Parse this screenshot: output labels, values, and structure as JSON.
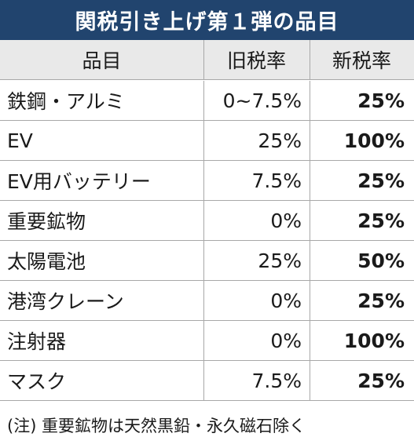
{
  "title": "関税引き上げ第１弾の品目",
  "columns": {
    "item": "品目",
    "old_rate": "旧税率",
    "new_rate": "新税率"
  },
  "rows": [
    {
      "item": "鉄鋼・アルミ",
      "old_rate": "0~7.5%",
      "new_rate": "25%"
    },
    {
      "item": "EV",
      "old_rate": "25%",
      "new_rate": "100%"
    },
    {
      "item": "EV用バッテリー",
      "old_rate": "7.5%",
      "new_rate": "25%"
    },
    {
      "item": "重要鉱物",
      "old_rate": "0%",
      "new_rate": "25%"
    },
    {
      "item": "太陽電池",
      "old_rate": "25%",
      "new_rate": "50%"
    },
    {
      "item": "港湾クレーン",
      "old_rate": "0%",
      "new_rate": "25%"
    },
    {
      "item": "注射器",
      "old_rate": "0%",
      "new_rate": "100%"
    },
    {
      "item": "マスク",
      "old_rate": "7.5%",
      "new_rate": "25%"
    }
  ],
  "footnote": "(注) 重要鉱物は天然黒鉛・永久磁石除く",
  "colors": {
    "title_background": "#21446e",
    "header_background": "#e9e9e9",
    "grid_line": "#a8a8a8"
  }
}
